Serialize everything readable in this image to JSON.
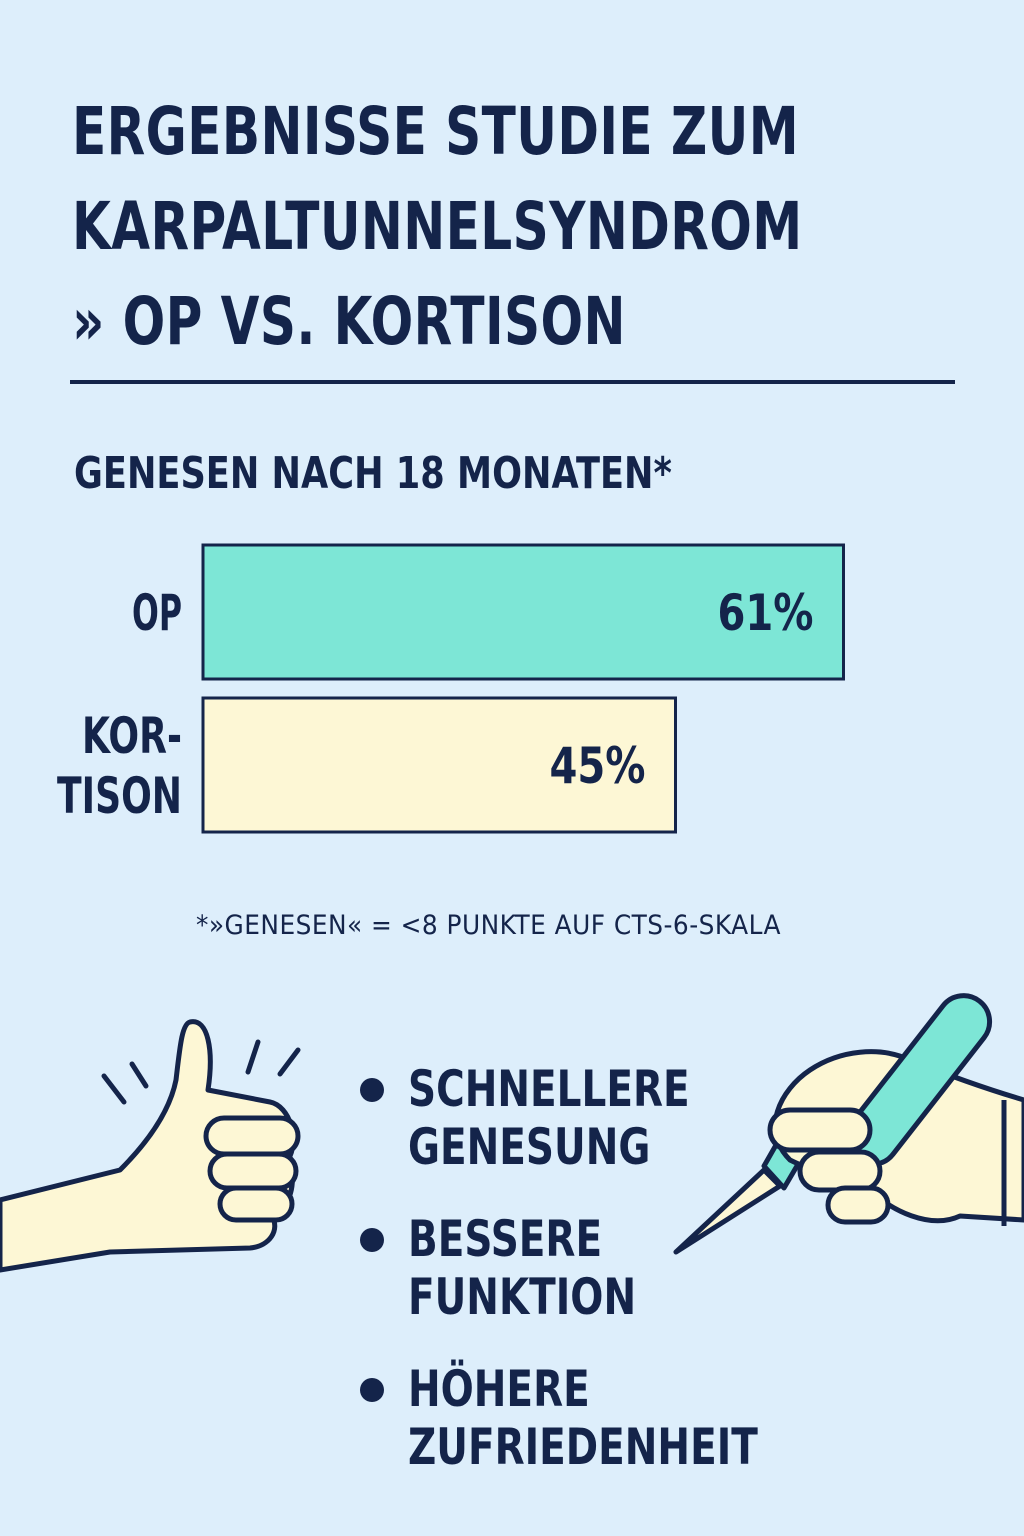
{
  "title": {
    "line1": "ERGEBNISSE STUDIE ZUM",
    "line2": "KARPALTUNNELSYNDROM",
    "line3": "» OP VS. KORTISON"
  },
  "chart_data": {
    "type": "bar",
    "title": "GENESEN NACH 18 MONATEN*",
    "categories": [
      "OP",
      "KOR-\nTISON"
    ],
    "category_lines": [
      [
        "OP"
      ],
      [
        "KOR-",
        "TISON"
      ]
    ],
    "values": [
      61,
      45
    ],
    "value_labels": [
      "61%",
      "45%"
    ],
    "unit": "%",
    "xlim": [
      0,
      100
    ],
    "colors": [
      "#7de6d6",
      "#fdf7d5"
    ],
    "orientation": "horizontal",
    "footnote": "*»GENESEN« = <8 PUNKTE AUF CTS-6-SKALA"
  },
  "benefits": [
    {
      "line1": "SCHNELLERE",
      "line2": "GENESUNG"
    },
    {
      "line1": "BESSERE",
      "line2": "FUNKTION"
    },
    {
      "line1": "HÖHERE",
      "line2": "ZUFRIEDENHEIT"
    }
  ],
  "icons": {
    "thumb": "thumbs-up-icon",
    "scalpel": "hand-with-scalpel-icon",
    "bullet": "bullet-dot-icon"
  },
  "colors": {
    "background": "#ddeefb",
    "ink": "#14244a",
    "teal": "#7de6d6",
    "cream": "#fdf7d5"
  }
}
